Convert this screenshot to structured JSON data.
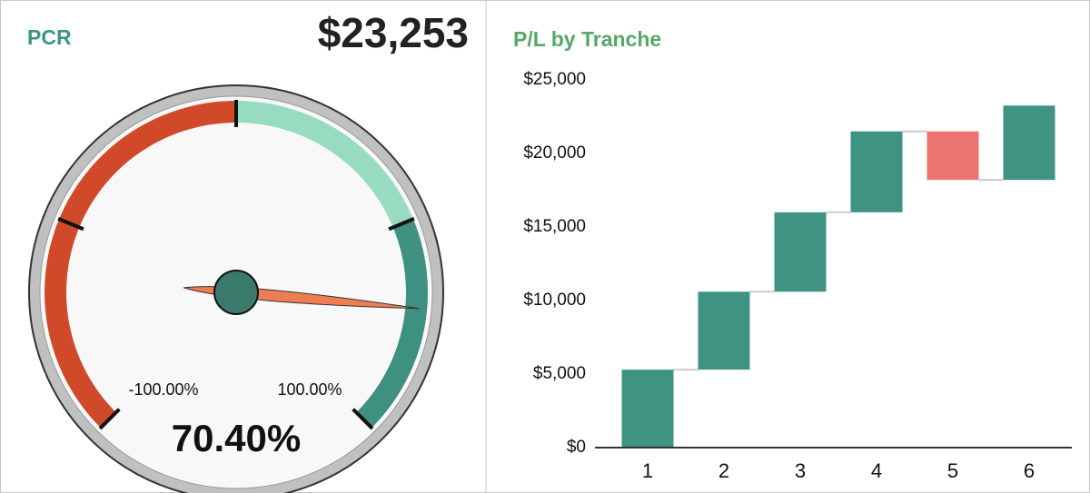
{
  "chart_data": [
    {
      "type": "gauge",
      "title": "PCR",
      "headline": "$23,253",
      "min": {
        "value": -100,
        "label": "-100.00%"
      },
      "max": {
        "value": 100,
        "label": "100.00%"
      },
      "value": 70.4,
      "value_label": "70.40%",
      "bands": [
        {
          "from": -100,
          "to": 0,
          "color": "#d04a2a"
        },
        {
          "from": 0,
          "to": 50,
          "color": "#97dcc0"
        },
        {
          "from": 50,
          "to": 100,
          "color": "#3e9080"
        }
      ],
      "ticks": [
        -100,
        -50,
        0,
        50,
        100
      ],
      "needle_color": "#ef7d52",
      "hub_color": "#3a7a6a"
    },
    {
      "type": "waterfall",
      "title": "P/L by Tranche",
      "categories": [
        "1",
        "2",
        "3",
        "4",
        "5",
        "6"
      ],
      "values": [
        5300,
        5300,
        5400,
        5500,
        -3300,
        5053
      ],
      "positive_color": "#3e9383",
      "negative_color": "#ee7470",
      "ylim": [
        0,
        25000
      ],
      "yticks": [
        {
          "value": 0,
          "label": "$0"
        },
        {
          "value": 5000,
          "label": "$5,000"
        },
        {
          "value": 10000,
          "label": "$10,000"
        },
        {
          "value": 15000,
          "label": "$15,000"
        },
        {
          "value": 20000,
          "label": "$20,000"
        },
        {
          "value": 25000,
          "label": "$25,000"
        }
      ]
    }
  ]
}
